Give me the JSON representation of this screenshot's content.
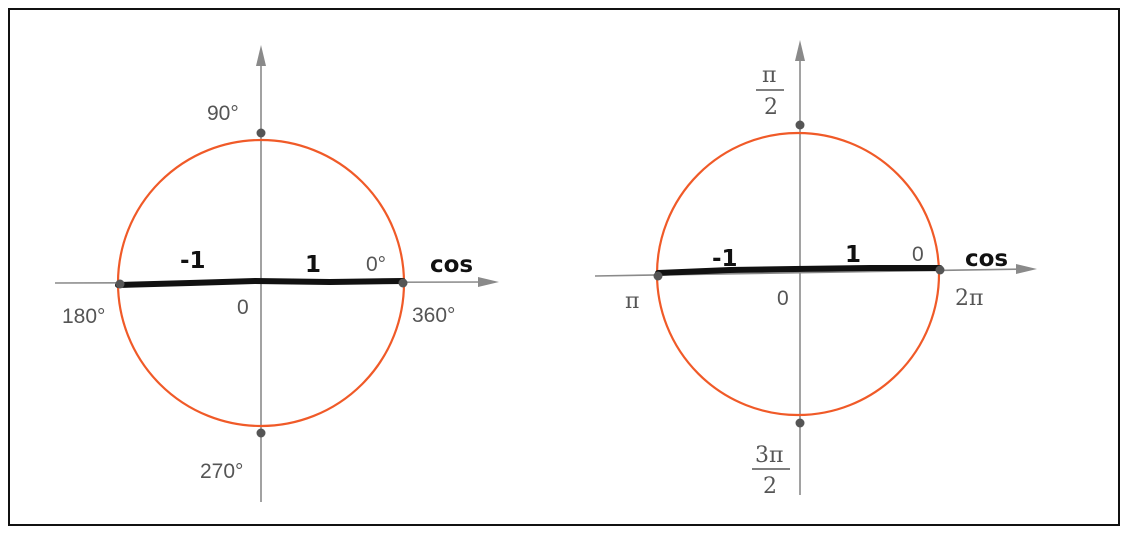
{
  "colors": {
    "circle": "#f05a28",
    "axis": "#8a8a8a",
    "segment": "#111111",
    "point": "#555555",
    "frame": "#111111"
  },
  "left_diagram": {
    "axis_label": "cos",
    "neg_one": "-1",
    "pos_one": "1",
    "origin": "0",
    "angle_top": "90°",
    "angle_right": "0°",
    "angle_right_low": "360°",
    "angle_left": "180°",
    "angle_bottom": "270°"
  },
  "right_diagram": {
    "axis_label": "cos",
    "neg_one": "-1",
    "pos_one": "1",
    "origin": "0",
    "zero": "0",
    "pi": "π",
    "two_pi": "2π",
    "top_num": "π",
    "top_den": "2",
    "bottom_num": "3π",
    "bottom_den": "2"
  }
}
